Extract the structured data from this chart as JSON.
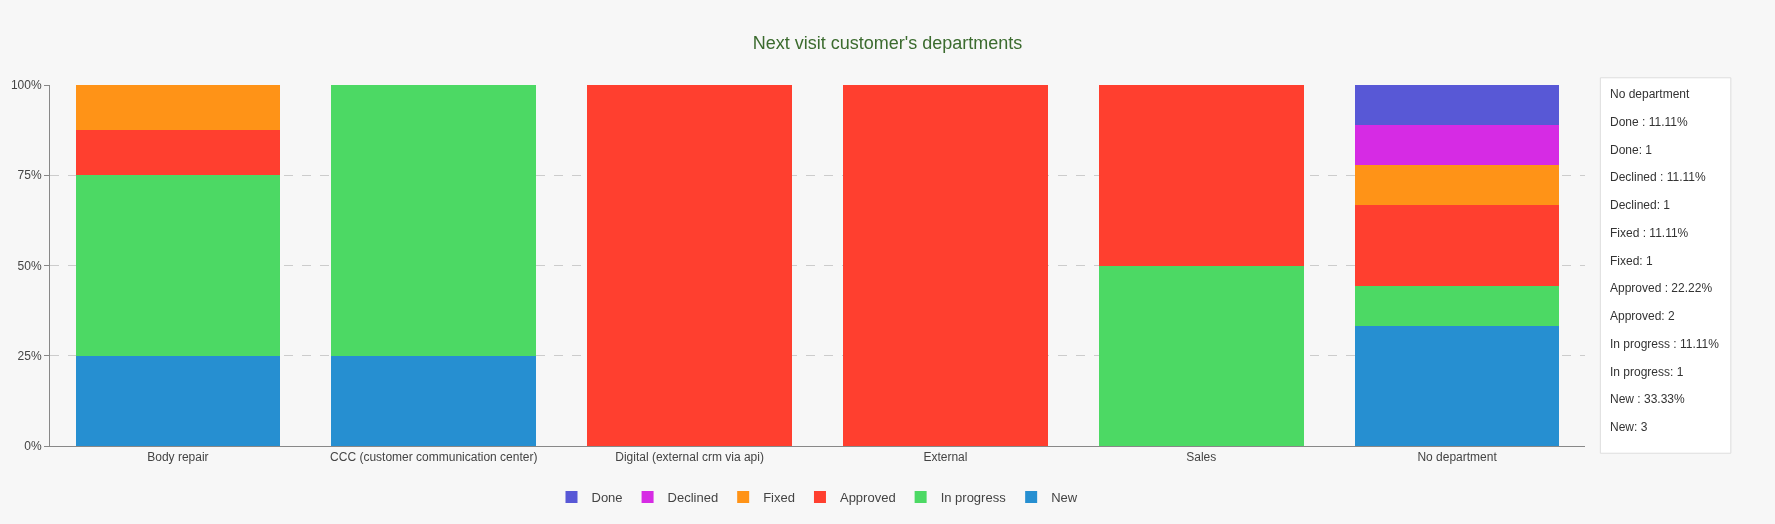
{
  "chart_data": {
    "type": "bar",
    "stacked": true,
    "title": "Next visit customer's departments",
    "categories": [
      "Body repair",
      "CCC (customer communication center)",
      "Digital (external crm via api)",
      "External",
      "Sales",
      "No department"
    ],
    "series": [
      {
        "name": "New",
        "color": "#268fd1",
        "values": [
          25,
          25,
          0,
          0,
          0,
          33.33
        ]
      },
      {
        "name": "In progress",
        "color": "#4cd964",
        "values": [
          50,
          75,
          0,
          0,
          50,
          11.11
        ]
      },
      {
        "name": "Approved",
        "color": "#ff3f2f",
        "values": [
          12.5,
          0,
          100,
          100,
          50,
          22.22
        ]
      },
      {
        "name": "Fixed",
        "color": "#ff9317",
        "values": [
          12.5,
          0,
          0,
          0,
          0,
          11.11
        ]
      },
      {
        "name": "Declined",
        "color": "#d62be4",
        "values": [
          0,
          0,
          0,
          0,
          0,
          11.11
        ]
      },
      {
        "name": "Done",
        "color": "#5858d6",
        "values": [
          0,
          0,
          0,
          0,
          0,
          11.11
        ]
      }
    ],
    "ylim": [
      0,
      100
    ],
    "yticks": [
      {
        "value": 0,
        "label": "0%"
      },
      {
        "value": 25,
        "label": "25%"
      },
      {
        "value": 50,
        "label": "50%"
      },
      {
        "value": 75,
        "label": "75%"
      },
      {
        "value": 100,
        "label": "100%"
      }
    ],
    "grid": "y",
    "legend": "bottom",
    "annotations": [
      "No department",
      "Done : 11.11%",
      "Done: 1",
      "Declined : 11.11%",
      "Declined: 1",
      "Fixed : 11.11%",
      "Fixed: 1",
      "Approved : 22.22%",
      "Approved: 2",
      "In progress : 11.11%",
      "In progress: 1",
      "New : 33.33%",
      "New: 3"
    ]
  }
}
